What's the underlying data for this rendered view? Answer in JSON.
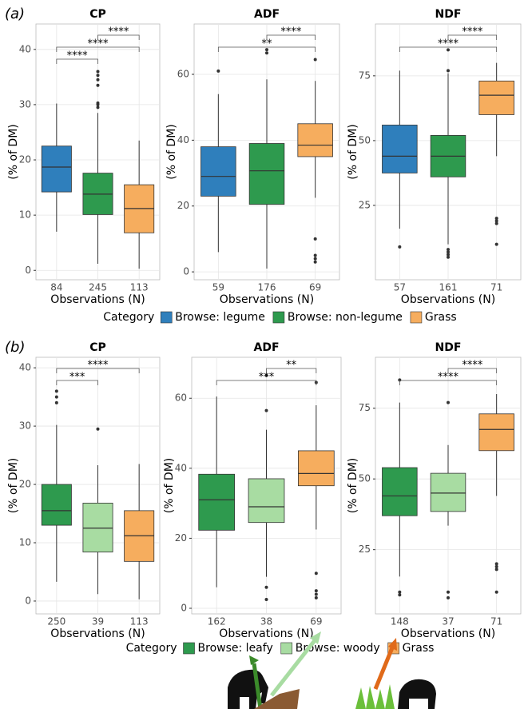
{
  "panels": [
    {
      "label": "(a)",
      "legend_title": "Category",
      "legend": [
        {
          "name": "Browse: legume",
          "color": "#2f7fbc"
        },
        {
          "name": "Browse: non-legume",
          "color": "#2e9a4e"
        },
        {
          "name": "Grass",
          "color": "#f6ad5e"
        }
      ]
    },
    {
      "label": "(b)",
      "legend_title": "Category",
      "legend": [
        {
          "name": "Browse: leafy",
          "color": "#2e9a4e"
        },
        {
          "name": "Browse: woody",
          "color": "#a8dca2"
        },
        {
          "name": "Grass",
          "color": "#f6ad5e"
        }
      ]
    }
  ],
  "chart_data": [
    {
      "type": "box",
      "title": "CP",
      "ylabel": "(% of DM)",
      "xlabel": "Observations (N)",
      "grid": true,
      "categories": [
        "84",
        "245",
        "113"
      ],
      "ylim": [
        -1.7,
        44.6
      ],
      "yticks": [
        0,
        10,
        20,
        30,
        40
      ],
      "boxes": [
        {
          "color": "#2f7fbc",
          "min": 7,
          "q1": 14.2,
          "median": 18.7,
          "q3": 22.5,
          "max": 30.2,
          "outliers": []
        },
        {
          "color": "#2e9a4e",
          "min": 1.2,
          "q1": 10.1,
          "median": 13.8,
          "q3": 17.6,
          "max": 28.5,
          "outliers": [
            29.5,
            30,
            30.3,
            33.5,
            34.5,
            35.3,
            36
          ]
        },
        {
          "color": "#f6ad5e",
          "min": 0.3,
          "q1": 6.8,
          "median": 11.2,
          "q3": 15.5,
          "max": 23.5,
          "outliers": []
        }
      ],
      "brackets": [
        {
          "from": 0,
          "to": 1,
          "label": "****"
        },
        {
          "from": 0,
          "to": 2,
          "label": "****"
        },
        {
          "from": 1,
          "to": 2,
          "label": "****"
        }
      ]
    },
    {
      "type": "box",
      "title": "ADF",
      "ylabel": "(% of DM)",
      "xlabel": "Observations (N)",
      "grid": true,
      "categories": [
        "59",
        "176",
        "69"
      ],
      "ylim": [
        -2.4,
        75.3
      ],
      "yticks": [
        0,
        20,
        40,
        60
      ],
      "boxes": [
        {
          "color": "#2f7fbc",
          "min": 6,
          "q1": 23,
          "median": 29,
          "q3": 38,
          "max": 54,
          "outliers": [
            61
          ]
        },
        {
          "color": "#2e9a4e",
          "min": 1,
          "q1": 20.5,
          "median": 30.7,
          "q3": 39,
          "max": 58.5,
          "outliers": [
            66.5,
            67.5
          ]
        },
        {
          "color": "#f6ad5e",
          "min": 22.5,
          "q1": 35,
          "median": 38.5,
          "q3": 45,
          "max": 58,
          "outliers": [
            64.5,
            10,
            5,
            4,
            3
          ]
        }
      ],
      "brackets": [
        {
          "from": 0,
          "to": 2,
          "label": "**"
        },
        {
          "from": 1,
          "to": 2,
          "label": "****"
        }
      ]
    },
    {
      "type": "box",
      "title": "NDF",
      "ylabel": "(% of DM)",
      "xlabel": "Observations (N)",
      "grid": true,
      "categories": [
        "57",
        "161",
        "71"
      ],
      "ylim": [
        -3.7,
        95
      ],
      "yticks": [
        25,
        50,
        75
      ],
      "boxes": [
        {
          "color": "#2f7fbc",
          "min": 16,
          "q1": 37.5,
          "median": 44,
          "q3": 56,
          "max": 77,
          "outliers": [
            9
          ]
        },
        {
          "color": "#2e9a4e",
          "min": 10,
          "q1": 36,
          "median": 44,
          "q3": 52,
          "max": 76,
          "outliers": [
            77,
            85,
            5,
            6,
            7,
            8
          ]
        },
        {
          "color": "#f6ad5e",
          "min": 44,
          "q1": 60,
          "median": 67.5,
          "q3": 73,
          "max": 80,
          "outliers": [
            20,
            19,
            18,
            10
          ]
        }
      ],
      "brackets": [
        {
          "from": 0,
          "to": 2,
          "label": "****"
        },
        {
          "from": 1,
          "to": 2,
          "label": "****"
        }
      ]
    },
    {
      "type": "box",
      "title": "CP",
      "ylabel": "(% of DM)",
      "xlabel": "Observations (N)",
      "grid": true,
      "categories": [
        "250",
        "39",
        "113"
      ],
      "ylim": [
        -2.2,
        41.8
      ],
      "yticks": [
        0,
        10,
        20,
        30,
        40
      ],
      "boxes": [
        {
          "color": "#2e9a4e",
          "min": 3.3,
          "q1": 13,
          "median": 15.5,
          "q3": 20,
          "max": 30.2,
          "outliers": [
            34,
            35,
            36
          ]
        },
        {
          "color": "#a8dca2",
          "min": 1.2,
          "q1": 8.4,
          "median": 12.5,
          "q3": 16.8,
          "max": 23.3,
          "outliers": [
            29.5
          ]
        },
        {
          "color": "#f6ad5e",
          "min": 0.3,
          "q1": 6.8,
          "median": 11.2,
          "q3": 15.5,
          "max": 23.5,
          "outliers": []
        }
      ],
      "brackets": [
        {
          "from": 0,
          "to": 1,
          "label": "***"
        },
        {
          "from": 0,
          "to": 2,
          "label": "****"
        }
      ]
    },
    {
      "type": "box",
      "title": "ADF",
      "ylabel": "(% of DM)",
      "xlabel": "Observations (N)",
      "grid": true,
      "categories": [
        "162",
        "38",
        "69"
      ],
      "ylim": [
        -1.6,
        71.7
      ],
      "yticks": [
        0,
        20,
        40,
        60
      ],
      "boxes": [
        {
          "color": "#2e9a4e",
          "min": 6,
          "q1": 22.3,
          "median": 31,
          "q3": 38.3,
          "max": 60.5,
          "outliers": []
        },
        {
          "color": "#a8dca2",
          "min": 9,
          "q1": 24.5,
          "median": 29,
          "q3": 37,
          "max": 51,
          "outliers": [
            56.5,
            66.5,
            6,
            2.5
          ]
        },
        {
          "color": "#f6ad5e",
          "min": 22.5,
          "q1": 35,
          "median": 38.5,
          "q3": 45,
          "max": 58,
          "outliers": [
            64.5,
            10,
            5,
            4,
            3
          ]
        }
      ],
      "brackets": [
        {
          "from": 0,
          "to": 2,
          "label": "***"
        },
        {
          "from": 1,
          "to": 2,
          "label": "**"
        }
      ]
    },
    {
      "type": "box",
      "title": "NDF",
      "ylabel": "(% of DM)",
      "xlabel": "Observations (N)",
      "grid": true,
      "categories": [
        "148",
        "37",
        "71"
      ],
      "ylim": [
        2.3,
        93
      ],
      "yticks": [
        25,
        50,
        75
      ],
      "boxes": [
        {
          "color": "#2e9a4e",
          "min": 15.5,
          "q1": 37,
          "median": 44,
          "q3": 54,
          "max": 77,
          "outliers": [
            85,
            10,
            9
          ]
        },
        {
          "color": "#a8dca2",
          "min": 33.5,
          "q1": 38.5,
          "median": 45,
          "q3": 52,
          "max": 62,
          "outliers": [
            77,
            10,
            8
          ]
        },
        {
          "color": "#f6ad5e",
          "min": 44,
          "q1": 60,
          "median": 67.5,
          "q3": 73,
          "max": 80,
          "outliers": [
            20,
            19,
            18,
            10
          ]
        }
      ],
      "brackets": [
        {
          "from": 0,
          "to": 2,
          "label": "****"
        },
        {
          "from": 1,
          "to": 2,
          "label": "****"
        }
      ]
    }
  ]
}
